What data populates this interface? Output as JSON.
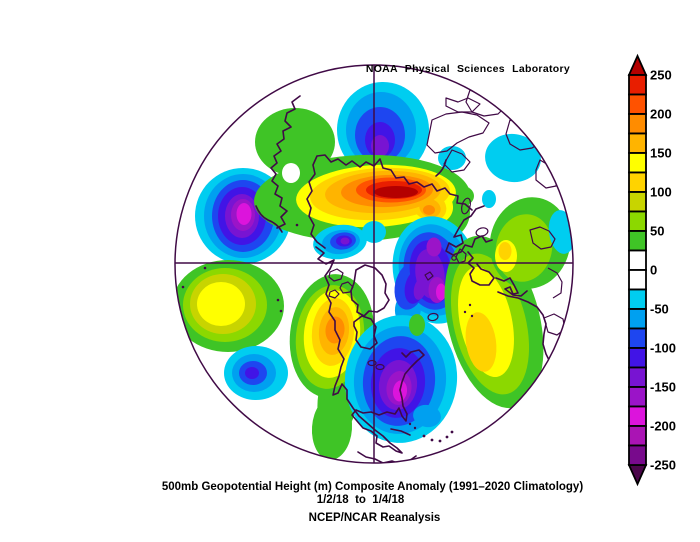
{
  "header": {
    "title": "NOAA Physical Sciences Laboratory"
  },
  "caption": {
    "line1": "500mb Geopotential Height (m) Composite Anomaly (1991–2020 Climatology)",
    "line2": "1/2/18  to  1/4/18",
    "line3": "NCEP/NCAR Reanalysis"
  },
  "colorbar": {
    "tick_labels": [
      "250",
      "200",
      "150",
      "100",
      "50",
      "0",
      "-50",
      "-100",
      "-150",
      "-200",
      "-250"
    ],
    "band_order_top_to_bottom": [
      "225_250",
      "200_225",
      "175_200",
      "150_175",
      "125_150",
      "100_125",
      "75_100",
      "50_75",
      "25_50",
      "0_25",
      "0_25",
      "n25_50",
      "n50_75",
      "n75_100",
      "n100_125",
      "n125_150",
      "n150_175",
      "n175_200",
      "n200_225",
      "n225_250"
    ],
    "arrow_top_band": "gt250",
    "arrow_bottom_band": "lt250"
  },
  "map": {
    "line_color": "#400a46",
    "background": "#ffffff",
    "palette": {
      "gt250": "#b40000",
      "225_250": "#e81e00",
      "200_225": "#ff5200",
      "175_200": "#ff8c00",
      "150_175": "#ffb400",
      "125_150": "#ffff00",
      "100_125": "#ffd300",
      "75_100": "#c8d400",
      "50_75": "#8cd800",
      "25_50": "#3fc426",
      "0_25": "#ffffff",
      "n25_50": "#00cdf0",
      "n50_75": "#00a0f0",
      "n75_100": "#1e46f0",
      "n100_125": "#4114e6",
      "n125_150": "#7814d2",
      "n150_175": "#9b14c8",
      "n175_200": "#dc14dc",
      "n200_225": "#aa14b4",
      "n225_250": "#780a8c",
      "lt250": "#4b064b"
    }
  },
  "chart_data": {
    "type": "heatmap",
    "title": "500mb Geopotential Height (m) Composite Anomaly (1991–2020 Climatology)",
    "date_range": "1/2/18 to 1/4/18",
    "dataset": "NCEP/NCAR Reanalysis",
    "attribution": "NOAA Physical Sciences Laboratory",
    "variable": "500mb geopotential height anomaly",
    "units": "m",
    "projection": "Northern Hemisphere polar stereographic",
    "colorbar_range": [
      -250,
      250
    ],
    "contour_interval": 25,
    "colorbar_ticks": [
      250,
      200,
      150,
      100,
      50,
      0,
      -50,
      -100,
      -150,
      -200,
      -250
    ],
    "anomaly_centers": [
      {
        "region": "central Siberia",
        "sign": "positive",
        "peak_value_m": 250
      },
      {
        "region": "Arctic Ocean north of Siberia",
        "sign": "negative",
        "peak_value_m": -150
      },
      {
        "region": "Gulf of Alaska / Aleutians",
        "sign": "negative",
        "peak_value_m": -200
      },
      {
        "region": "central North Pacific",
        "sign": "positive",
        "peak_value_m": 150
      },
      {
        "region": "subtropical North Pacific",
        "sign": "negative",
        "peak_value_m": -100
      },
      {
        "region": "western North America",
        "sign": "positive",
        "peak_value_m": 200
      },
      {
        "region": "eastern North America / northwest Atlantic",
        "sign": "negative",
        "peak_value_m": -200
      },
      {
        "region": "Scandinavia / Barents Sea",
        "sign": "negative",
        "peak_value_m": -200
      },
      {
        "region": "eastern North Atlantic / western Europe",
        "sign": "positive",
        "peak_value_m": 125
      },
      {
        "region": "eastern Europe / Mediterranean",
        "sign": "positive",
        "peak_value_m": 125
      }
    ]
  }
}
